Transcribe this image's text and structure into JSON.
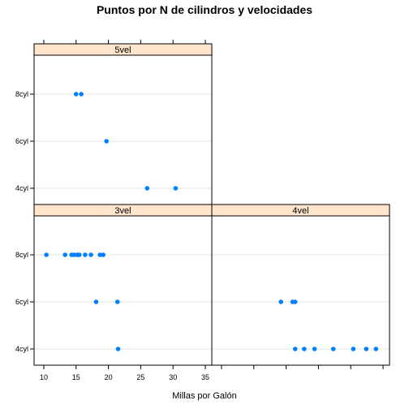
{
  "chart_data": {
    "type": "scatter",
    "title": "Puntos por N de cilindros y velocidades",
    "xlabel": "Millas por Galón",
    "ylabel": "",
    "xlim": [
      8.5,
      36
    ],
    "xticks": [
      10,
      15,
      20,
      25,
      30,
      35
    ],
    "yticks": [
      "4cyl",
      "6cyl",
      "8cyl"
    ],
    "grid": true,
    "color": "#0080ff",
    "strip_color": "#ffe5cc",
    "panels": [
      {
        "name": "5vel",
        "points": [
          {
            "cyl": "8cyl",
            "mpg": 15.0
          },
          {
            "cyl": "8cyl",
            "mpg": 15.8
          },
          {
            "cyl": "6cyl",
            "mpg": 19.7
          },
          {
            "cyl": "4cyl",
            "mpg": 26.0
          },
          {
            "cyl": "4cyl",
            "mpg": 30.4
          }
        ]
      },
      {
        "name": "3vel",
        "points": [
          {
            "cyl": "8cyl",
            "mpg": 10.4
          },
          {
            "cyl": "8cyl",
            "mpg": 13.3
          },
          {
            "cyl": "8cyl",
            "mpg": 14.3
          },
          {
            "cyl": "8cyl",
            "mpg": 14.7
          },
          {
            "cyl": "8cyl",
            "mpg": 15.2
          },
          {
            "cyl": "8cyl",
            "mpg": 15.5
          },
          {
            "cyl": "8cyl",
            "mpg": 16.4
          },
          {
            "cyl": "8cyl",
            "mpg": 17.3
          },
          {
            "cyl": "8cyl",
            "mpg": 18.7
          },
          {
            "cyl": "8cyl",
            "mpg": 19.2
          },
          {
            "cyl": "6cyl",
            "mpg": 18.1
          },
          {
            "cyl": "6cyl",
            "mpg": 21.4
          },
          {
            "cyl": "4cyl",
            "mpg": 21.5
          }
        ]
      },
      {
        "name": "4vel",
        "points": [
          {
            "cyl": "6cyl",
            "mpg": 19.2
          },
          {
            "cyl": "6cyl",
            "mpg": 21.0
          },
          {
            "cyl": "6cyl",
            "mpg": 21.4
          },
          {
            "cyl": "4cyl",
            "mpg": 21.4
          },
          {
            "cyl": "4cyl",
            "mpg": 22.8
          },
          {
            "cyl": "4cyl",
            "mpg": 24.4
          },
          {
            "cyl": "4cyl",
            "mpg": 27.3
          },
          {
            "cyl": "4cyl",
            "mpg": 30.4
          },
          {
            "cyl": "4cyl",
            "mpg": 32.4
          },
          {
            "cyl": "4cyl",
            "mpg": 33.9
          }
        ]
      }
    ]
  }
}
